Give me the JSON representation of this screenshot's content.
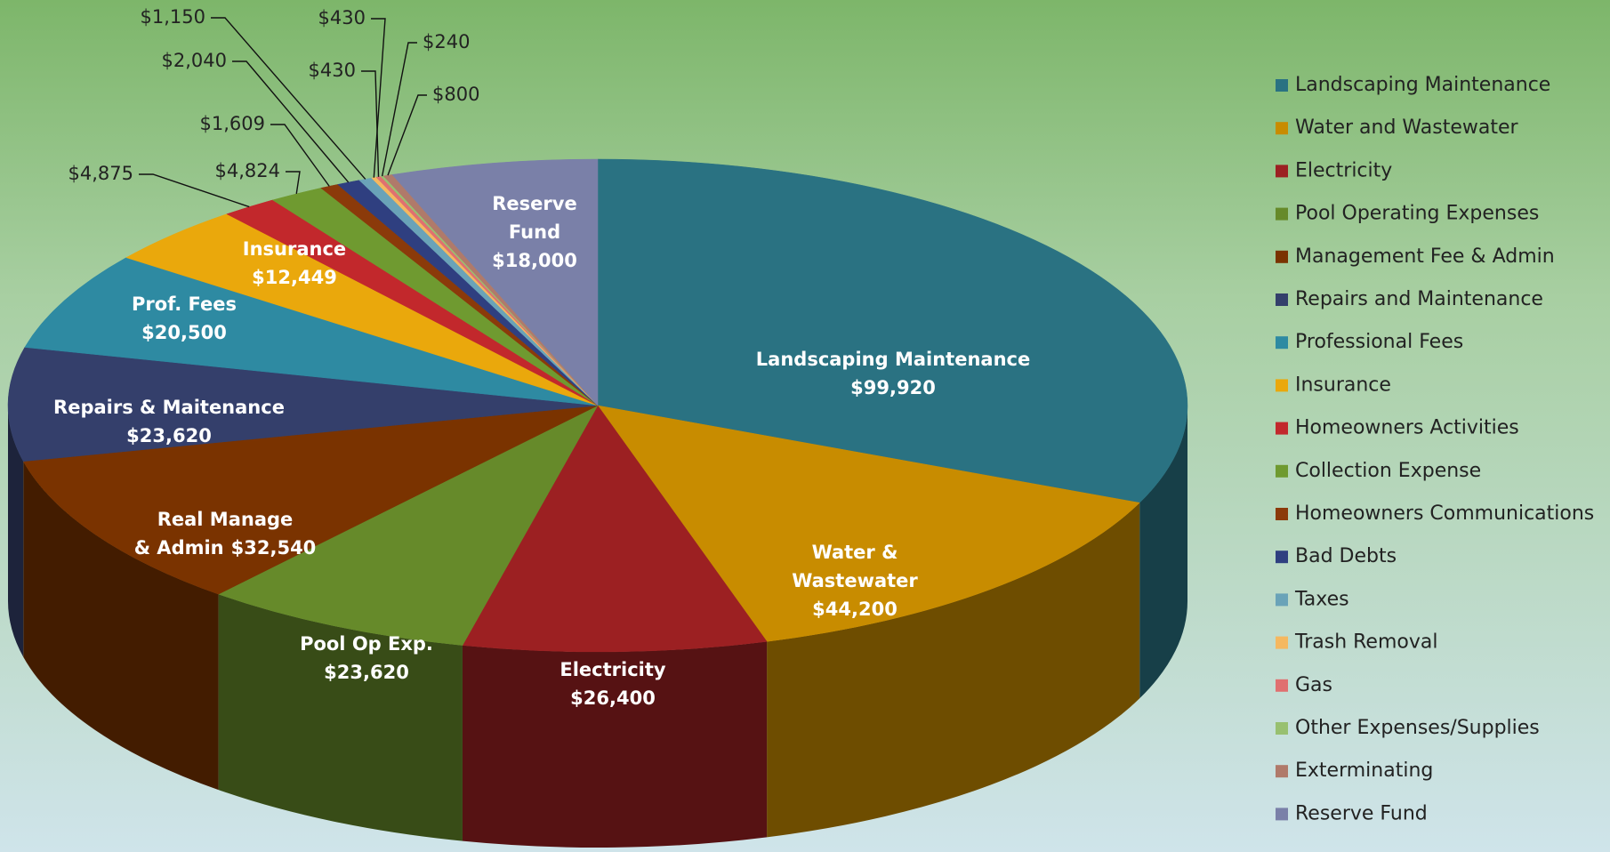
{
  "chart_data": {
    "type": "pie3d",
    "categories": [
      "Landscaping Maintenance",
      "Water and Wastewater",
      "Electricity",
      "Pool Operating Expenses",
      "Management Fee & Admin",
      "Repairs and Maintenance",
      "Professional Fees",
      "Insurance",
      "Homeowners Activities",
      "Collection Expense",
      "Homeowners Communications",
      "Bad Debts",
      "Taxes",
      "Trash Removal",
      "Gas",
      "Other Expenses/Supplies",
      "Exterminating",
      "Reserve Fund"
    ],
    "values": [
      99920,
      44200,
      26400,
      23620,
      32540,
      23620,
      20500,
      12449,
      4875,
      4824,
      1609,
      2040,
      1150,
      430,
      430,
      240,
      800,
      18000
    ],
    "value_labels": [
      "$99,920",
      "$44,200",
      "$26,400",
      "$23,620",
      "$32,540",
      "$23,620",
      "$20,500",
      "$12,449",
      "$4,875",
      "$4,824",
      "$1,609",
      "$2,040",
      "$1,150",
      "$430",
      "$430",
      "$240",
      "$800",
      "$18,000"
    ],
    "slice_labels": [
      [
        "Landscaping Maintenance"
      ],
      [
        "Water &",
        "Wastewater"
      ],
      [
        "Electricity"
      ],
      [
        "Pool Op Exp."
      ],
      [
        "Real Manage",
        "& Admin"
      ],
      [
        "Repairs & Maitenance"
      ],
      [
        "Prof. Fees"
      ],
      [
        "Insurance"
      ],
      null,
      null,
      null,
      null,
      null,
      null,
      null,
      null,
      null,
      [
        "Reserve",
        "Fund"
      ]
    ],
    "colors": [
      "#2a7282",
      "#c88c00",
      "#9c2022",
      "#668a2a",
      "#7a3300",
      "#343f6b",
      "#2e8aa2",
      "#eaa80c",
      "#c2282c",
      "#6f9a30",
      "#8b3a0a",
      "#2f3f80",
      "#6aa3b8",
      "#f5b860",
      "#e07070",
      "#98c070",
      "#b07a6a",
      "#7a80a8"
    ],
    "legend": "right"
  }
}
